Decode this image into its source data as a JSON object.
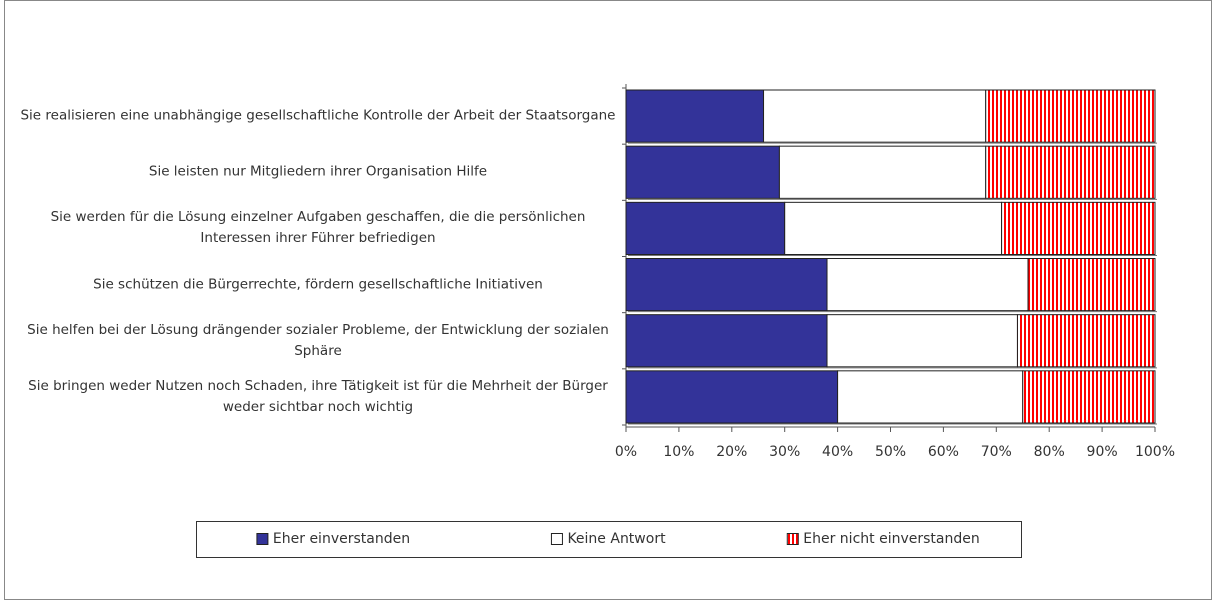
{
  "chart_data": {
    "type": "stacked-bar-horizontal",
    "categories": [
      "Sie realisieren eine unabhängige gesellschaftliche Kontrolle der Arbeit der Staatsorgane",
      "Sie leisten nur Mitgliedern ihrer Organisation Hilfe",
      "Sie werden für die Lösung einzelner Aufgaben geschaffen, die die persönlichen Interessen ihrer Führer befriedigen",
      "Sie schützen die Bürgerrechte, fördern gesellschaftliche Initiativen",
      "Sie helfen bei der Lösung drängender sozialer Probleme, der Entwicklung der sozialen Sphäre",
      "Sie bringen weder Nutzen noch Schaden, ihre Tätigkeit ist für die Mehrheit der Bürger weder sichtbar noch wichtig"
    ],
    "series": [
      {
        "name": "Eher einverstanden",
        "color": "#333399",
        "values": [
          26,
          29,
          30,
          38,
          38,
          40
        ]
      },
      {
        "name": "Keine Antwort",
        "color": "#ffffff",
        "values": [
          42,
          39,
          41,
          38,
          36,
          35
        ]
      },
      {
        "name": "Eher nicht einverstanden",
        "color": "#ff0000",
        "pattern": "vertical-stripes",
        "values": [
          32,
          32,
          29,
          24,
          26,
          25
        ]
      }
    ],
    "xlim": [
      0,
      100
    ],
    "xticks": [
      {
        "value": 0,
        "label": "0%"
      },
      {
        "value": 10,
        "label": "10%"
      },
      {
        "value": 20,
        "label": "20%"
      },
      {
        "value": 30,
        "label": "30%"
      },
      {
        "value": 40,
        "label": "40%"
      },
      {
        "value": 50,
        "label": "50%"
      },
      {
        "value": 60,
        "label": "60%"
      },
      {
        "value": 70,
        "label": "70%"
      },
      {
        "value": 80,
        "label": "80%"
      },
      {
        "value": 90,
        "label": "90%"
      },
      {
        "value": 100,
        "label": "100%"
      }
    ],
    "legend": "bottom"
  }
}
